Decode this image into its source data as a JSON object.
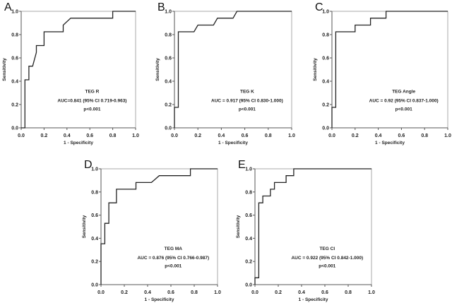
{
  "chart_data": [
    {
      "panel": "A",
      "type": "line",
      "title": "TEG R",
      "auc_text": "AUC=0.841 (95% CI 0.719-0.963)",
      "p_text": "p<0.001",
      "xlabel": "1 - Specificity",
      "ylabel": "Sensitivity",
      "xlim": [
        0,
        1
      ],
      "ylim": [
        0,
        1
      ],
      "xticks": [
        "0.0",
        "0.2",
        "0.4",
        "0.6",
        "0.8",
        "1.0"
      ],
      "yticks": [
        "0.0",
        "0.2",
        "0.4",
        "0.6",
        "0.8",
        "1.0"
      ],
      "x": [
        0,
        0.033,
        0.033,
        0.067,
        0.067,
        0.1,
        0.133,
        0.133,
        0.2,
        0.2,
        0.367,
        0.367,
        0.433,
        0.8,
        0.8,
        1
      ],
      "y": [
        0,
        0,
        0.412,
        0.412,
        0.529,
        0.529,
        0.647,
        0.706,
        0.706,
        0.824,
        0.824,
        0.882,
        0.941,
        0.941,
        1,
        1
      ]
    },
    {
      "panel": "B",
      "type": "line",
      "title": "TEG K",
      "auc_text": "AUC = 0.917 (95% CI 0.830-1.000)",
      "p_text": "p<0.001",
      "xlabel": "1 - Specificity",
      "ylabel": "Sensitivity",
      "xlim": [
        0,
        1
      ],
      "ylim": [
        0,
        1
      ],
      "xticks": [
        "0.0",
        "0.2",
        "0.4",
        "0.6",
        "0.8",
        "1.0"
      ],
      "yticks": [
        "0.0",
        "0.2",
        "0.4",
        "0.6",
        "0.8",
        "1.0"
      ],
      "x": [
        0,
        0,
        0.033,
        0.033,
        0.167,
        0.2,
        0.333,
        0.367,
        0.5,
        0.533,
        1
      ],
      "y": [
        0,
        0.176,
        0.176,
        0.824,
        0.824,
        0.882,
        0.882,
        0.941,
        0.941,
        1,
        1
      ]
    },
    {
      "panel": "C",
      "type": "line",
      "title": "TEG Angle",
      "auc_text": "AUC = 0.92 (95% CI 0.837-1.000)",
      "p_text": "p<0.001",
      "xlabel": "1 - Specificity",
      "ylabel": "Sensitivity",
      "xlim": [
        0,
        1
      ],
      "ylim": [
        0,
        1
      ],
      "xticks": [
        "0.0",
        "0.2",
        "0.4",
        "0.6",
        "0.8",
        "1.0"
      ],
      "yticks": [
        "0.0",
        "0.2",
        "0.4",
        "0.6",
        "0.8",
        "1.0"
      ],
      "x": [
        0,
        0,
        0.033,
        0.033,
        0.2,
        0.2,
        0.333,
        0.333,
        0.467,
        0.467,
        1
      ],
      "y": [
        0,
        0.176,
        0.176,
        0.824,
        0.824,
        0.882,
        0.882,
        0.941,
        0.941,
        1,
        1
      ]
    },
    {
      "panel": "D",
      "type": "line",
      "title": "TEG MA",
      "auc_text": "AUC = 0.876 (95% CI 0.766-0.987)",
      "p_text": "p<0.001",
      "xlabel": "1 - Specificity",
      "ylabel": "Sensitivity",
      "xlim": [
        0,
        1
      ],
      "ylim": [
        0,
        1
      ],
      "xticks": [
        "0.0",
        "0.2",
        "0.4",
        "0.6",
        "0.8",
        "1.0"
      ],
      "yticks": [
        "0.0",
        "0.2",
        "0.4",
        "0.6",
        "0.8",
        "1.0"
      ],
      "x": [
        0,
        0,
        0.033,
        0.033,
        0.067,
        0.067,
        0.133,
        0.133,
        0.3,
        0.3,
        0.433,
        0.5,
        0.767,
        0.767,
        1
      ],
      "y": [
        0,
        0.353,
        0.353,
        0.529,
        0.529,
        0.706,
        0.706,
        0.824,
        0.824,
        0.882,
        0.882,
        0.941,
        0.941,
        1,
        1
      ]
    },
    {
      "panel": "E",
      "type": "line",
      "title": "TEG CI",
      "auc_text": "AUC = 0.922 (95% CI 0.842-1.000)",
      "p_text": "p<0.001",
      "xlabel": "1 - Specificity",
      "ylabel": "Sensitivity",
      "xlim": [
        0,
        1
      ],
      "ylim": [
        0,
        1
      ],
      "xticks": [
        "0.0",
        "0.2",
        "0.4",
        "0.6",
        "0.8",
        "1.0"
      ],
      "yticks": [
        "0.0",
        "0.2",
        "0.4",
        "0.6",
        "0.8",
        "1.0"
      ],
      "x": [
        0,
        0,
        0.033,
        0.033,
        0.067,
        0.067,
        0.133,
        0.133,
        0.167,
        0.167,
        0.267,
        0.267,
        0.333,
        0.333,
        1
      ],
      "y": [
        0,
        0.059,
        0.059,
        0.706,
        0.706,
        0.765,
        0.765,
        0.824,
        0.824,
        0.882,
        0.882,
        0.941,
        0.941,
        1,
        1
      ]
    }
  ],
  "colors": {
    "curve": "#222222",
    "axis": "#555555",
    "frame": "#aaaaaa"
  }
}
